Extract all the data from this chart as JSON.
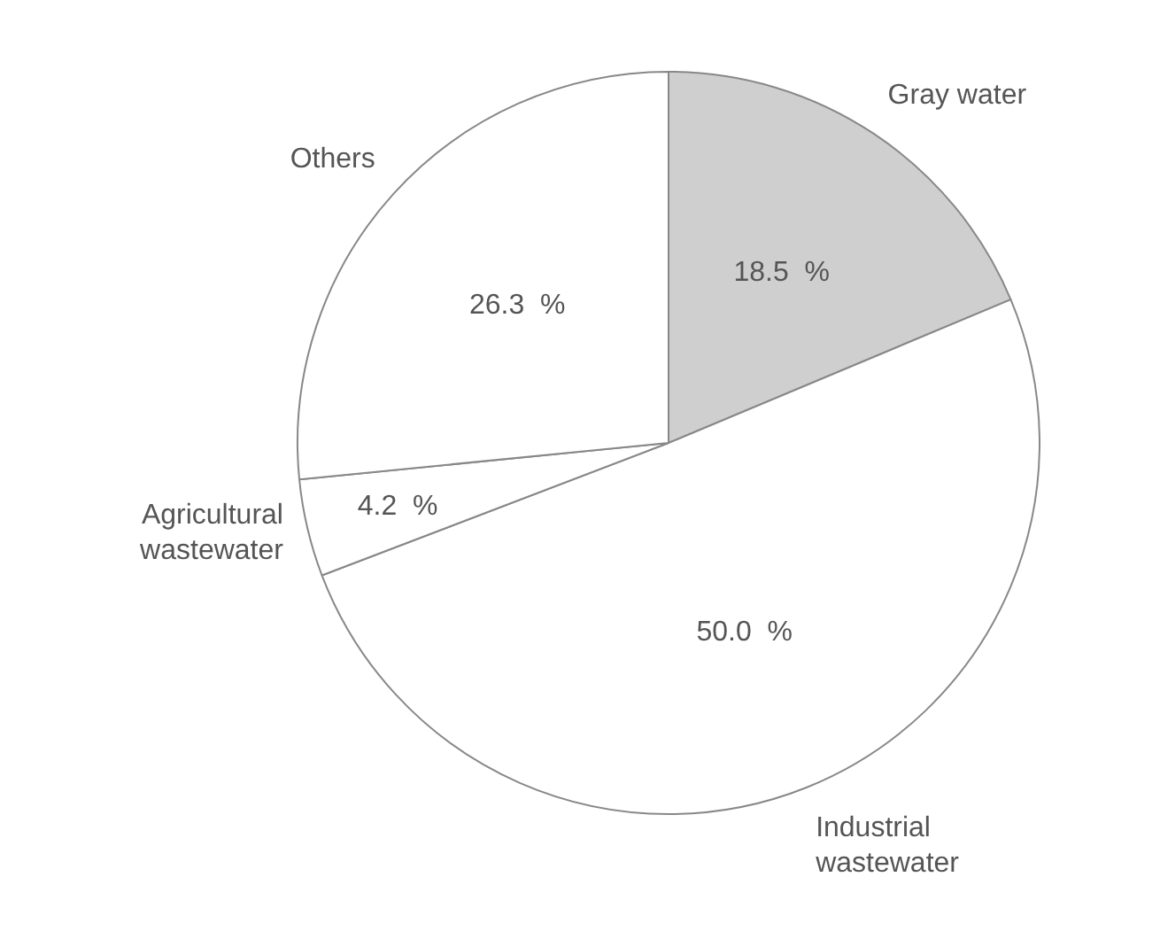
{
  "chart_data": {
    "type": "pie",
    "categories": [
      "Gray water",
      "Industrial wastewater",
      "Agricultural wastewater",
      "Others"
    ],
    "values": [
      18.5,
      50.0,
      4.2,
      26.3
    ],
    "colors": [
      "#cfcfcf",
      "#ffffff",
      "#ffffff",
      "#ffffff"
    ],
    "value_labels": [
      "18.5  %",
      "50.0  %",
      "4.2  %",
      "26.3  %"
    ],
    "legend": false
  }
}
